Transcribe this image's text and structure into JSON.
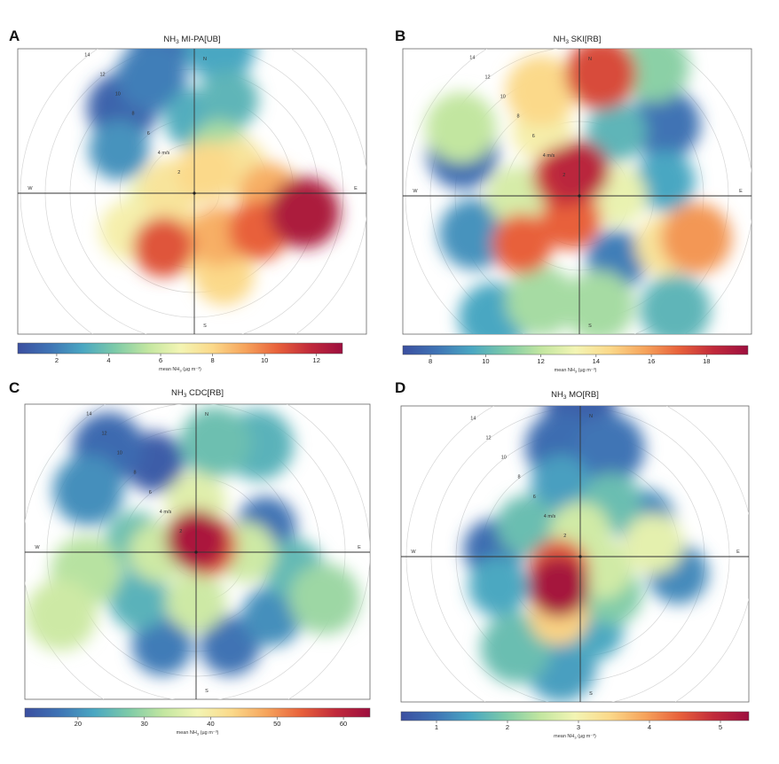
{
  "figure": {
    "description_free": true,
    "palette": [
      "#3b4fa0",
      "#3f74b5",
      "#4aa7c2",
      "#7dcaa8",
      "#c2e6a0",
      "#f3f5b4",
      "#fbd98a",
      "#f6a45c",
      "#e8613b",
      "#c12a3b",
      "#9e0f3f"
    ]
  },
  "chart_data": [
    {
      "type": "heatmap",
      "panel": "A",
      "title": "NH3 MI-PA[UB]",
      "title_main": "NH",
      "title_sub": "3",
      "title_rest": " MI-PA[UB]",
      "colorbar_label": "mean NH3 (µg m⁻³)",
      "colorbar_main": "mean NH",
      "colorbar_sub": "3",
      "colorbar_rest": " (µg m⁻³)",
      "colorbar_range": [
        0.5,
        13
      ],
      "colorbar_ticks": [
        2,
        4,
        6,
        8,
        10,
        12
      ],
      "rings": [
        2,
        4,
        6,
        8,
        10,
        12,
        14
      ],
      "ring_labels": [
        "2",
        "4 m/s",
        "6",
        "8",
        "10",
        "12",
        "14"
      ],
      "directions": {
        "N": "N",
        "E": "E",
        "S": "S",
        "W": "W"
      },
      "blobs": [
        {
          "angle": 350,
          "speed": 13,
          "value": 1.5
        },
        {
          "angle": 340,
          "speed": 10,
          "value": 2.0
        },
        {
          "angle": 320,
          "speed": 9,
          "value": 1.2
        },
        {
          "angle": 300,
          "speed": 7,
          "value": 2.5
        },
        {
          "angle": 10,
          "speed": 12,
          "value": 3.0
        },
        {
          "angle": 20,
          "speed": 8,
          "value": 3.5
        },
        {
          "angle": 30,
          "speed": 4,
          "value": 5.0
        },
        {
          "angle": 60,
          "speed": 4,
          "value": 7.5
        },
        {
          "angle": 90,
          "speed": 6,
          "value": 9.0
        },
        {
          "angle": 100,
          "speed": 9,
          "value": 12.5
        },
        {
          "angle": 120,
          "speed": 6,
          "value": 10.5
        },
        {
          "angle": 150,
          "speed": 4,
          "value": 9.0
        },
        {
          "angle": 180,
          "speed": 4,
          "value": 8.0
        },
        {
          "angle": 210,
          "speed": 5,
          "value": 10.8
        },
        {
          "angle": 240,
          "speed": 6,
          "value": 7.0
        },
        {
          "angle": 260,
          "speed": 3,
          "value": 6.5
        },
        {
          "angle": 280,
          "speed": 2,
          "value": 7.5
        },
        {
          "angle": 30,
          "speed": 2,
          "value": 8.0
        },
        {
          "angle": 160,
          "speed": 7,
          "value": 8.0
        },
        {
          "angle": 0,
          "speed": 6,
          "value": 3.2
        }
      ]
    },
    {
      "type": "heatmap",
      "panel": "B",
      "title": "NH3 SKI[RB]",
      "title_main": "NH",
      "title_sub": "3",
      "title_rest": " SKI[RB]",
      "colorbar_label": "mean NH3 (µg m⁻³)",
      "colorbar_main": "mean NH",
      "colorbar_sub": "3",
      "colorbar_rest": " (µg m⁻³)",
      "colorbar_range": [
        7,
        19.5
      ],
      "colorbar_ticks": [
        8,
        10,
        12,
        14,
        16,
        18
      ],
      "rings": [
        2,
        4,
        6,
        8,
        10,
        12,
        14
      ],
      "ring_labels": [
        "2",
        "4 m/s",
        "6",
        "8",
        "10",
        "12",
        "14"
      ],
      "directions": {
        "N": "N",
        "E": "E",
        "S": "S",
        "W": "W"
      },
      "blobs": [
        {
          "angle": 0,
          "speed": 2,
          "value": 18.5
        },
        {
          "angle": 320,
          "speed": 2,
          "value": 18.0
        },
        {
          "angle": 200,
          "speed": 2,
          "value": 17.0
        },
        {
          "angle": 10,
          "speed": 10,
          "value": 17.5
        },
        {
          "angle": 340,
          "speed": 9,
          "value": 14.5
        },
        {
          "angle": 30,
          "speed": 6,
          "value": 10.0
        },
        {
          "angle": 50,
          "speed": 9,
          "value": 8.2
        },
        {
          "angle": 80,
          "speed": 7,
          "value": 9.5
        },
        {
          "angle": 120,
          "speed": 8,
          "value": 14.0
        },
        {
          "angle": 110,
          "speed": 10,
          "value": 16.0
        },
        {
          "angle": 150,
          "speed": 6,
          "value": 8.5
        },
        {
          "angle": 170,
          "speed": 9,
          "value": 11.5
        },
        {
          "angle": 200,
          "speed": 9,
          "value": 11.5
        },
        {
          "angle": 230,
          "speed": 6,
          "value": 17.0
        },
        {
          "angle": 250,
          "speed": 9,
          "value": 9.0
        },
        {
          "angle": 290,
          "speed": 10,
          "value": 8.0
        },
        {
          "angle": 300,
          "speed": 11,
          "value": 12.0
        },
        {
          "angle": 330,
          "speed": 6,
          "value": 13.5
        },
        {
          "angle": 270,
          "speed": 5,
          "value": 12.5
        },
        {
          "angle": 30,
          "speed": 12,
          "value": 11.0
        },
        {
          "angle": 140,
          "speed": 12,
          "value": 10.0
        },
        {
          "angle": 215,
          "speed": 12,
          "value": 9.5
        },
        {
          "angle": 90,
          "speed": 3,
          "value": 13.0
        }
      ]
    },
    {
      "type": "heatmap",
      "panel": "C",
      "title": "NH3 CDC[RB]",
      "title_main": "NH",
      "title_sub": "3",
      "title_rest": " CDC[RB]",
      "colorbar_label": "mean NH3 (µg m⁻³)",
      "colorbar_main": "mean NH",
      "colorbar_sub": "3",
      "colorbar_rest": " (µg m⁻³)",
      "colorbar_range": [
        12,
        64
      ],
      "colorbar_ticks": [
        20,
        30,
        40,
        50,
        60
      ],
      "rings": [
        2,
        4,
        6,
        8,
        10,
        12,
        14
      ],
      "ring_labels": [
        "2",
        "4 m/s",
        "6",
        "8",
        "10",
        "12",
        "14"
      ],
      "directions": {
        "N": "N",
        "E": "E",
        "S": "S",
        "W": "W"
      },
      "blobs": [
        {
          "angle": 0,
          "speed": 1,
          "value": 62
        },
        {
          "angle": 60,
          "speed": 1,
          "value": 55
        },
        {
          "angle": 320,
          "speed": 11,
          "value": 16
        },
        {
          "angle": 335,
          "speed": 8,
          "value": 14
        },
        {
          "angle": 300,
          "speed": 10,
          "value": 20
        },
        {
          "angle": 10,
          "speed": 9,
          "value": 26
        },
        {
          "angle": 30,
          "speed": 10,
          "value": 24
        },
        {
          "angle": 70,
          "speed": 6,
          "value": 17
        },
        {
          "angle": 100,
          "speed": 8,
          "value": 25
        },
        {
          "angle": 130,
          "speed": 8,
          "value": 20
        },
        {
          "angle": 160,
          "speed": 8,
          "value": 17
        },
        {
          "angle": 200,
          "speed": 8,
          "value": 18
        },
        {
          "angle": 230,
          "speed": 6,
          "value": 24
        },
        {
          "angle": 260,
          "speed": 9,
          "value": 32
        },
        {
          "angle": 280,
          "speed": 5,
          "value": 26
        },
        {
          "angle": 0,
          "speed": 4,
          "value": 36
        },
        {
          "angle": 180,
          "speed": 4,
          "value": 34
        },
        {
          "angle": 90,
          "speed": 4,
          "value": 34
        },
        {
          "angle": 270,
          "speed": 3,
          "value": 34
        },
        {
          "angle": 245,
          "speed": 12,
          "value": 34
        },
        {
          "angle": 110,
          "speed": 11,
          "value": 30
        }
      ]
    },
    {
      "type": "heatmap",
      "panel": "D",
      "title": "NH3 MO[RB]",
      "title_main": "NH",
      "title_sub": "3",
      "title_rest": " MO[RB]",
      "colorbar_label": "mean NH3 (µg m⁻³)",
      "colorbar_main": "mean NH",
      "colorbar_sub": "3",
      "colorbar_rest": " (µg m⁻³)",
      "colorbar_range": [
        0.5,
        5.4
      ],
      "colorbar_ticks": [
        1,
        2,
        3,
        4,
        5
      ],
      "rings": [
        2,
        4,
        6,
        8,
        10,
        12,
        14
      ],
      "ring_labels": [
        "2",
        "4 m/s",
        "6",
        "8",
        "10",
        "12",
        "14"
      ],
      "directions": {
        "N": "N",
        "E": "E",
        "S": "S",
        "W": "W"
      },
      "blobs": [
        {
          "angle": 215,
          "speed": 3,
          "value": 5.3
        },
        {
          "angle": 240,
          "speed": 2,
          "value": 4.5
        },
        {
          "angle": 200,
          "speed": 5,
          "value": 3.5
        },
        {
          "angle": 0,
          "speed": 12,
          "value": 0.7
        },
        {
          "angle": 350,
          "speed": 9,
          "value": 0.9
        },
        {
          "angle": 15,
          "speed": 9,
          "value": 1.0
        },
        {
          "angle": 345,
          "speed": 6,
          "value": 1.4
        },
        {
          "angle": 30,
          "speed": 5,
          "value": 1.8
        },
        {
          "angle": 60,
          "speed": 6,
          "value": 1.2
        },
        {
          "angle": 80,
          "speed": 6,
          "value": 2.8
        },
        {
          "angle": 100,
          "speed": 8,
          "value": 1.2
        },
        {
          "angle": 140,
          "speed": 4,
          "value": 2.0
        },
        {
          "angle": 170,
          "speed": 6,
          "value": 1.5
        },
        {
          "angle": 190,
          "speed": 9,
          "value": 1.4
        },
        {
          "angle": 215,
          "speed": 9,
          "value": 1.8
        },
        {
          "angle": 250,
          "speed": 7,
          "value": 1.5
        },
        {
          "angle": 275,
          "speed": 7,
          "value": 0.9
        },
        {
          "angle": 300,
          "speed": 5,
          "value": 1.8
        },
        {
          "angle": 0,
          "speed": 2,
          "value": 2.6
        },
        {
          "angle": 120,
          "speed": 2,
          "value": 2.6
        }
      ]
    }
  ]
}
